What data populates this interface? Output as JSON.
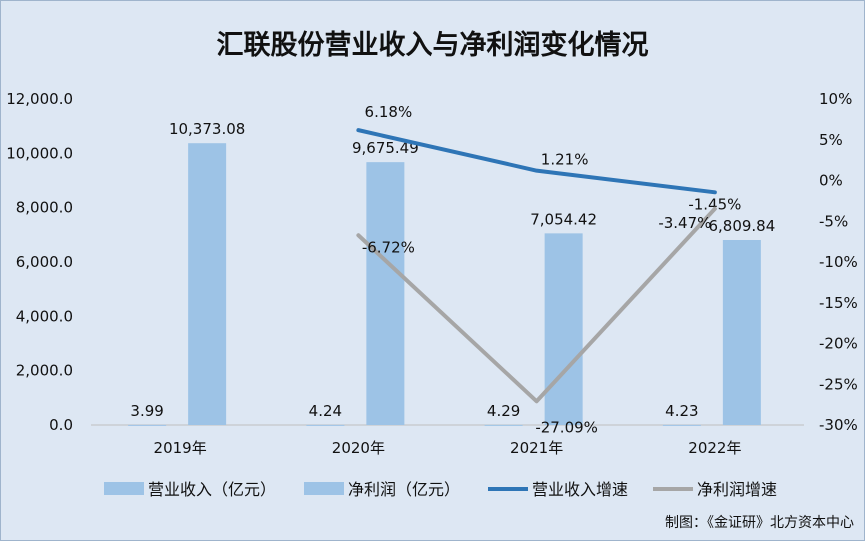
{
  "chart_data": {
    "type": "bar",
    "title": "汇联股份营业收入与净利润变化情况",
    "categories": [
      "2019年",
      "2020年",
      "2021年",
      "2022年"
    ],
    "left_axis": {
      "ylim": [
        0,
        12000
      ],
      "ticks": [
        "0.0",
        "2,000.0",
        "4,000.0",
        "6,000.0",
        "8,000.0",
        "10,000.0",
        "12,000.0"
      ]
    },
    "right_axis": {
      "ylim": [
        -30,
        10
      ],
      "ticks": [
        "-30%",
        "-25%",
        "-20%",
        "-15%",
        "-10%",
        "-5%",
        "0%",
        "5%",
        "10%"
      ]
    },
    "series": [
      {
        "name": "营业收入（亿元）",
        "kind": "bar",
        "axis": "left",
        "color": "#9dc3e6",
        "values": [
          3.99,
          4.24,
          4.29,
          4.23
        ],
        "labels": [
          "3.99",
          "4.24",
          "4.29",
          "4.23"
        ]
      },
      {
        "name": "净利润（亿元）",
        "kind": "bar",
        "axis": "left",
        "color": "#9dc3e6",
        "values": [
          10373.08,
          9675.49,
          7054.42,
          6809.84
        ],
        "labels": [
          "10,373.08",
          "9,675.49",
          "7,054.42",
          "6,809.84"
        ]
      },
      {
        "name": "营业收入增速",
        "kind": "line",
        "axis": "right",
        "color": "#2e75b6",
        "values": [
          null,
          6.18,
          1.21,
          -1.45
        ],
        "labels": [
          "",
          "6.18%",
          "1.21%",
          "-1.45%"
        ]
      },
      {
        "name": "净利润增速",
        "kind": "line",
        "axis": "right",
        "color": "#a6a6a6",
        "values": [
          null,
          -6.72,
          -27.09,
          -3.47
        ],
        "labels": [
          "",
          "-6.72%",
          "-27.09%",
          "-3.47%"
        ]
      }
    ],
    "grid": false,
    "legend": "bottom"
  },
  "credit": "制图：《金证研》北方资本中心"
}
